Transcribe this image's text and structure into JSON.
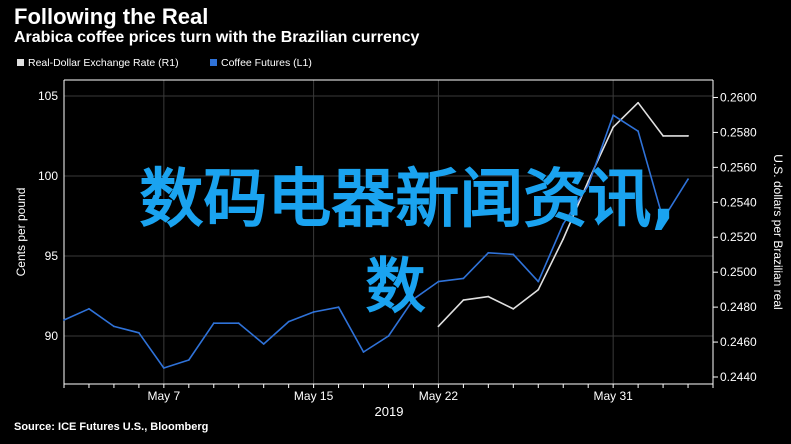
{
  "title": "Following the Real",
  "subtitle": "Arabica coffee prices turn with the Brazilian currency",
  "source": "Source: ICE Futures U.S., Bloomberg",
  "overlay_text": {
    "line1": "数码电器新闻资讯,",
    "line2": "数"
  },
  "colors": {
    "background": "#000000",
    "axis": "#ffffff",
    "grid": "#3a3a3a",
    "series_real": "#e0e0e0",
    "series_coffee": "#2f72d8",
    "overlay": "#1aa3f0"
  },
  "chart_data": {
    "type": "line",
    "title": "Following the Real",
    "subtitle": "Arabica coffee prices turn with the Brazilian currency",
    "x_tick_labels": [
      "May 7",
      "May 15",
      "May 22",
      "May 31"
    ],
    "x_year_label": "2019",
    "x_range": [
      0,
      26
    ],
    "x_ticks": [
      4,
      10,
      15,
      22
    ],
    "ylabel_left": "Cents per pound",
    "ylabel_right": "U.S. dollars per Brazilian real",
    "ylim_left": [
      87,
      106
    ],
    "yticks_left": [
      90,
      95,
      100,
      105
    ],
    "ylim_right": [
      0.2436,
      0.261
    ],
    "yticks_right": [
      "0.2440",
      "0.2460",
      "0.2480",
      "0.2500",
      "0.2520",
      "0.2540",
      "0.2560",
      "0.2580",
      "0.2600"
    ],
    "grid": true,
    "legend_placement": "top-left",
    "series": [
      {
        "name": "Real-Dollar Exchange Rate (R1)",
        "axis": "right",
        "x": [
          15,
          16,
          17,
          18,
          19,
          20,
          21,
          22,
          23,
          24,
          25
        ],
        "values": [
          0.2469,
          0.2484,
          0.2486,
          0.2479,
          0.249,
          0.2519,
          0.2552,
          0.2583,
          0.2597,
          0.2578,
          0.2578
        ]
      },
      {
        "name": "Coffee Futures (L1)",
        "axis": "left",
        "x": [
          0,
          1,
          2,
          3,
          4,
          5,
          6,
          7,
          8,
          9,
          10,
          11,
          12,
          13,
          14,
          15,
          16,
          17,
          18,
          19,
          20,
          21,
          22,
          23,
          24,
          25
        ],
        "values": [
          91.0,
          91.7,
          90.6,
          90.2,
          88.0,
          88.5,
          90.8,
          90.8,
          89.5,
          90.9,
          91.5,
          91.8,
          89.0,
          90.0,
          92.3,
          93.4,
          93.6,
          95.2,
          95.1,
          93.4,
          97.0,
          99.4,
          103.8,
          102.8,
          97.3,
          99.8
        ]
      }
    ]
  }
}
